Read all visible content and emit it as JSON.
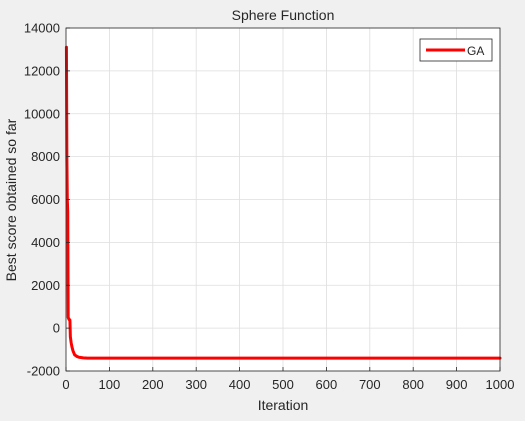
{
  "chart_data": {
    "type": "line",
    "title": "Sphere Function",
    "xlabel": "Iteration",
    "ylabel": "Best score obtained so far",
    "xlim": [
      0,
      1000
    ],
    "ylim": [
      -2000,
      14000
    ],
    "xticks": [
      0,
      100,
      200,
      300,
      400,
      500,
      600,
      700,
      800,
      900,
      1000
    ],
    "yticks": [
      -2000,
      0,
      2000,
      4000,
      6000,
      8000,
      10000,
      12000,
      14000
    ],
    "grid": true,
    "legend_position": "top-right",
    "series": [
      {
        "name": "GA",
        "color": "#ff0000",
        "x": [
          1,
          2,
          3,
          4,
          5,
          6,
          7,
          8,
          9,
          10,
          12,
          14,
          16,
          18,
          20,
          25,
          30,
          40,
          50,
          70,
          100,
          200,
          400,
          600,
          800,
          1000
        ],
        "y": [
          13100,
          8000,
          6000,
          5400,
          500,
          450,
          400,
          400,
          380,
          -400,
          -700,
          -900,
          -1050,
          -1150,
          -1250,
          -1320,
          -1360,
          -1390,
          -1400,
          -1400,
          -1400,
          -1400,
          -1400,
          -1400,
          -1400,
          -1400
        ]
      }
    ]
  }
}
